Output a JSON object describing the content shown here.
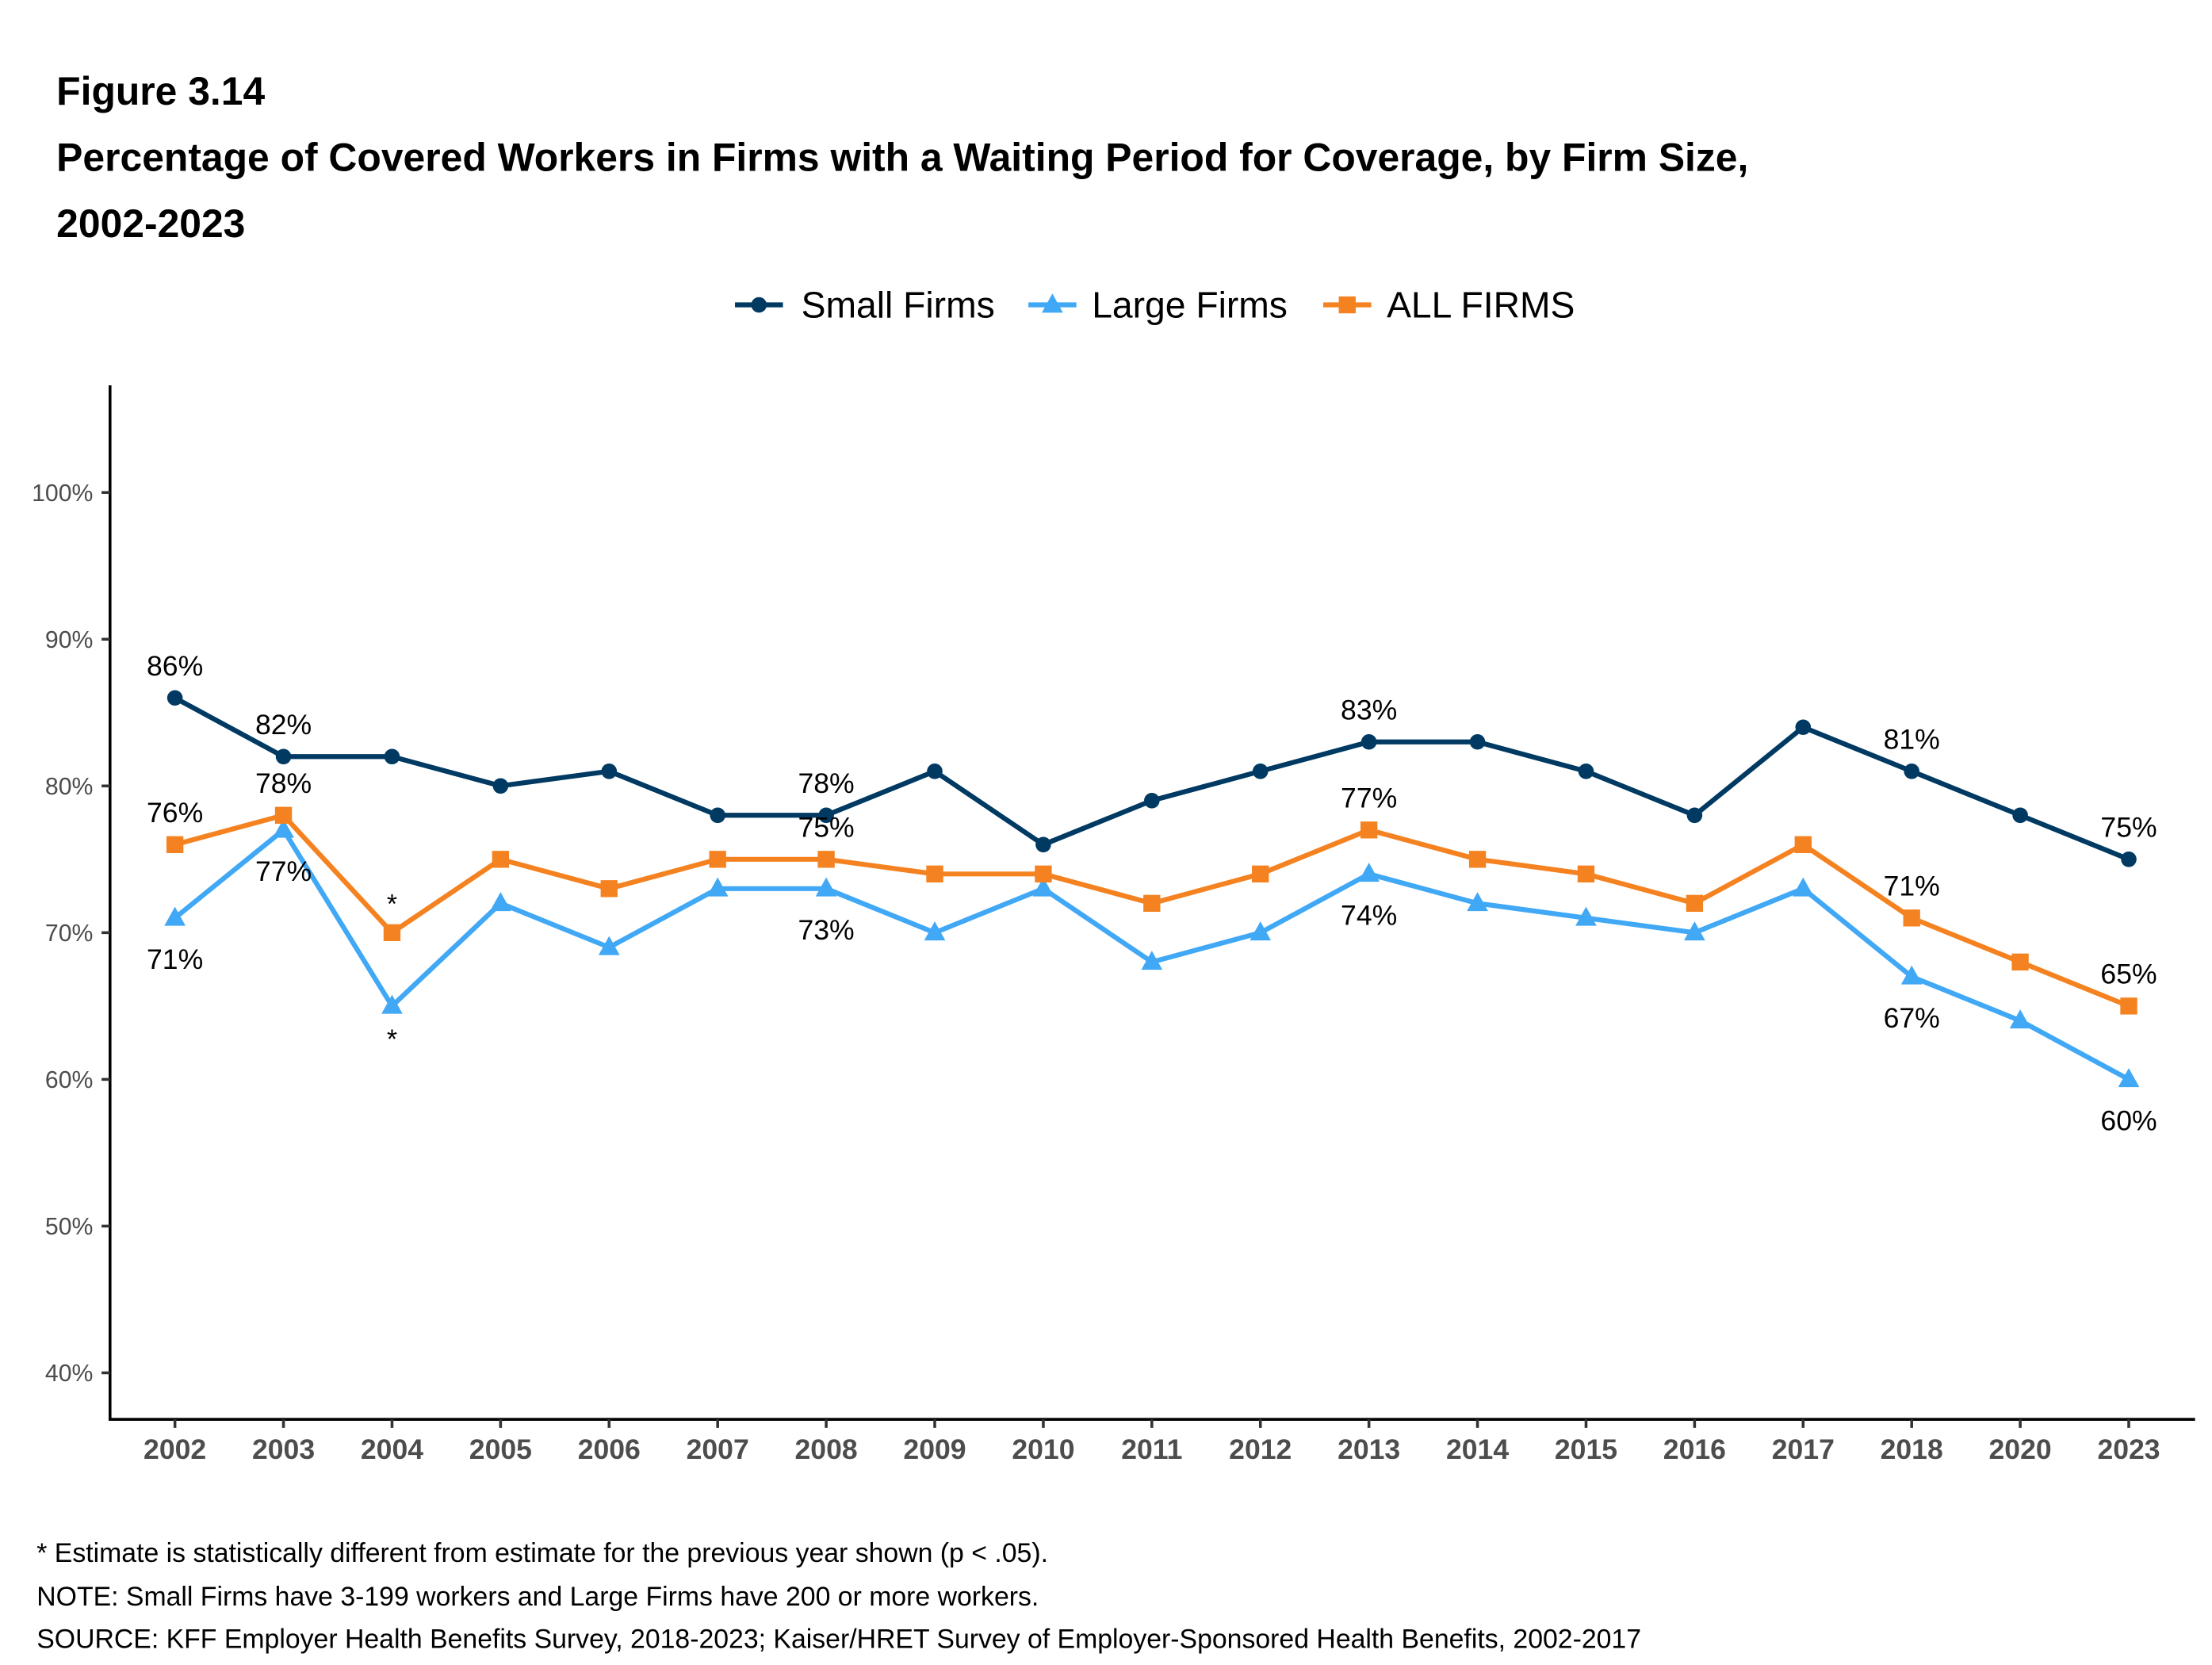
{
  "figure_label": "Figure 3.14",
  "title_line1": "Percentage of Covered Workers in Firms with a Waiting Period for Coverage, by Firm Size,",
  "title_line2": "2002-2023",
  "footnotes": [
    "* Estimate is statistically different from estimate for the previous year shown (p < .05).",
    "NOTE: Small Firms have 3-199 workers and Large Firms have 200 or more workers.",
    "SOURCE: KFF Employer Health Benefits Survey, 2018-2023; Kaiser/HRET Survey of Employer-Sponsored Health Benefits, 2002-2017"
  ],
  "chart_data": {
    "type": "line",
    "title": "Percentage of Covered Workers in Firms with a Waiting Period for Coverage, by Firm Size, 2002-2023",
    "xlabel": "",
    "ylabel": "",
    "x": [
      "2002",
      "2003",
      "2004",
      "2005",
      "2006",
      "2007",
      "2008",
      "2009",
      "2010",
      "2011",
      "2012",
      "2013",
      "2014",
      "2015",
      "2016",
      "2017",
      "2018",
      "2020",
      "2023"
    ],
    "ylim": [
      40,
      100
    ],
    "yticks": [
      40,
      50,
      60,
      70,
      80,
      90,
      100
    ],
    "ytick_labels": [
      "40%",
      "50%",
      "60%",
      "70%",
      "80%",
      "90%",
      "100%"
    ],
    "grid": false,
    "legend_position": "top",
    "series": [
      {
        "name": "Small Firms",
        "color": "#003a63",
        "marker": "circle",
        "values": [
          86,
          82,
          82,
          80,
          81,
          78,
          78,
          81,
          76,
          79,
          81,
          83,
          83,
          81,
          78,
          84,
          81,
          78,
          75
        ],
        "labeled": {
          "2002": "86%",
          "2003": "82%",
          "2008": "78%",
          "2013": "83%",
          "2018": "81%",
          "2023": "75%"
        },
        "label_pos": "above"
      },
      {
        "name": "Large Firms",
        "color": "#41a8f5",
        "marker": "triangle",
        "values": [
          71,
          77,
          65,
          72,
          69,
          73,
          73,
          70,
          73,
          68,
          70,
          74,
          72,
          71,
          70,
          73,
          67,
          64,
          60
        ],
        "labeled": {
          "2002": "71%",
          "2003": "77%",
          "2008": "73%",
          "2013": "74%",
          "2018": "67%",
          "2023": "60%"
        },
        "label_pos": "below",
        "significant": [
          "2004"
        ]
      },
      {
        "name": "ALL FIRMS",
        "color": "#f58220",
        "marker": "square",
        "values": [
          76,
          78,
          70,
          75,
          73,
          75,
          75,
          74,
          74,
          72,
          74,
          77,
          75,
          74,
          72,
          76,
          71,
          68,
          65
        ],
        "labeled": {
          "2002": "76%",
          "2003": "78%",
          "2008": "75%",
          "2013": "77%",
          "2018": "71%",
          "2023": "65%"
        },
        "label_pos": "above",
        "significant": [
          "2004"
        ]
      }
    ],
    "significance_marker": "*"
  }
}
